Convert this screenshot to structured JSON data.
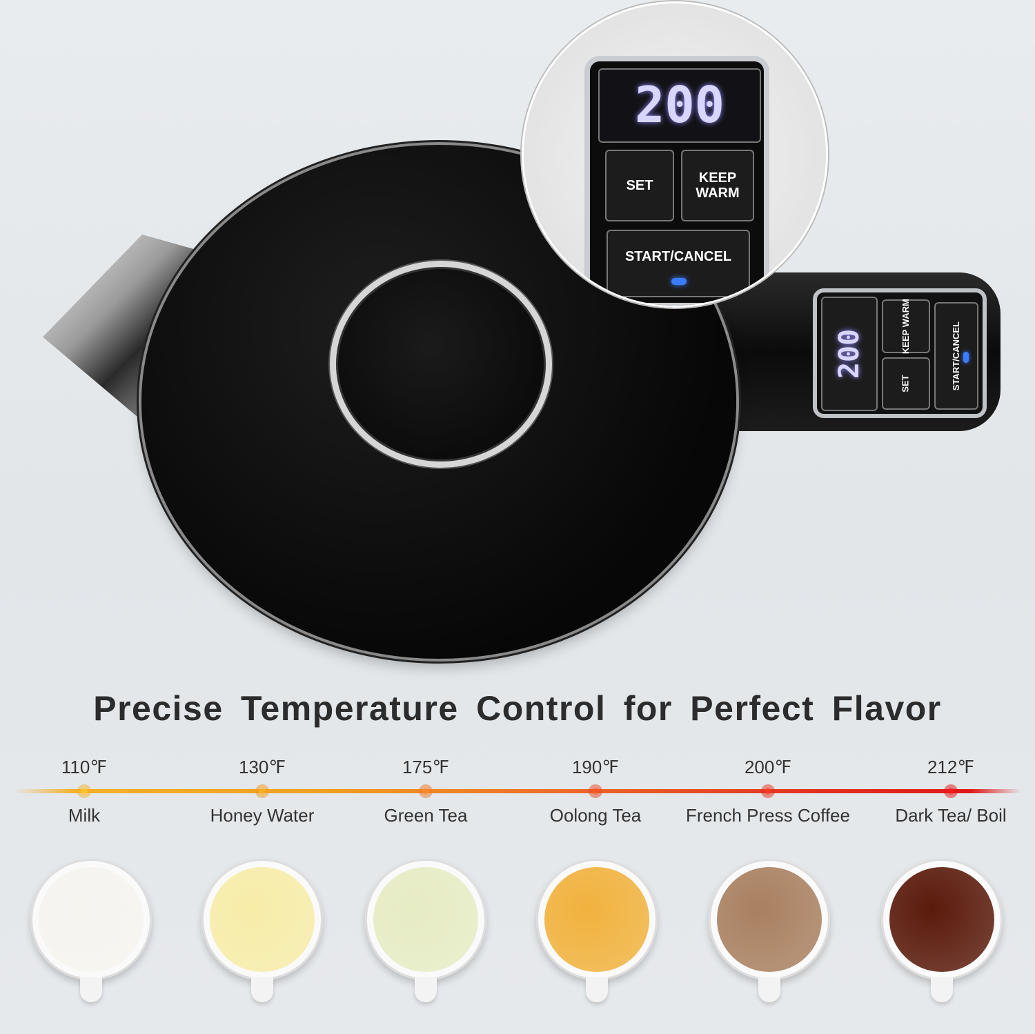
{
  "magnified_panel": {
    "display": "200",
    "set_label": "SET",
    "keep_warm_label": "KEEP WARM",
    "start_cancel_label": "START/CANCEL"
  },
  "handle_panel": {
    "display": "200",
    "set_label": "SET",
    "keep_warm_label": "KEEP WARM",
    "start_cancel_label": "START/CANCEL"
  },
  "indicator_color": "#3a7bff",
  "title": "Precise Temperature Control for Perfect Flavor",
  "settings": [
    {
      "temp": "110℉",
      "label": "Milk",
      "color": "#f5b02a",
      "cup_color": "#f6f4ef"
    },
    {
      "temp": "130℉",
      "label": "Honey Water",
      "color": "#f19a22",
      "cup_color": "#f7eca8"
    },
    {
      "temp": "175℉",
      "label": "Green Tea",
      "color": "#ee7a2a",
      "cup_color": "#e6ecc4"
    },
    {
      "temp": "190℉",
      "label": "Oolong Tea",
      "color": "#ea4a22",
      "cup_color": "#f1b23e"
    },
    {
      "temp": "200℉",
      "label": "French Press Coffee",
      "color": "#e2321f",
      "cup_color": "#a98060"
    },
    {
      "temp": "212℉",
      "label": "Dark Tea/ Boil",
      "color": "#e01818",
      "cup_color": "#5a1a0b"
    }
  ]
}
